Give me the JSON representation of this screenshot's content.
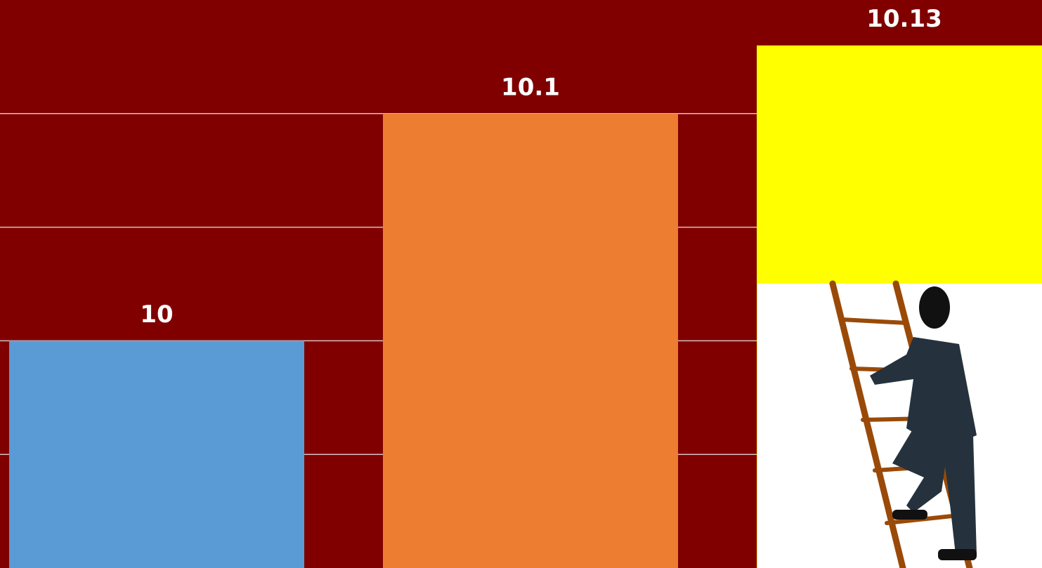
{
  "chart_data": {
    "type": "bar",
    "categories": [
      null,
      null,
      null
    ],
    "values": [
      10,
      10.1,
      10.13
    ],
    "colors": [
      "#5b9bd5",
      "#ed7d31",
      "#ffff00"
    ],
    "ylim": [
      9.9,
      10.15
    ],
    "yticks": [
      9.95,
      10,
      10.05,
      10.1
    ],
    "grid": true
  }
}
